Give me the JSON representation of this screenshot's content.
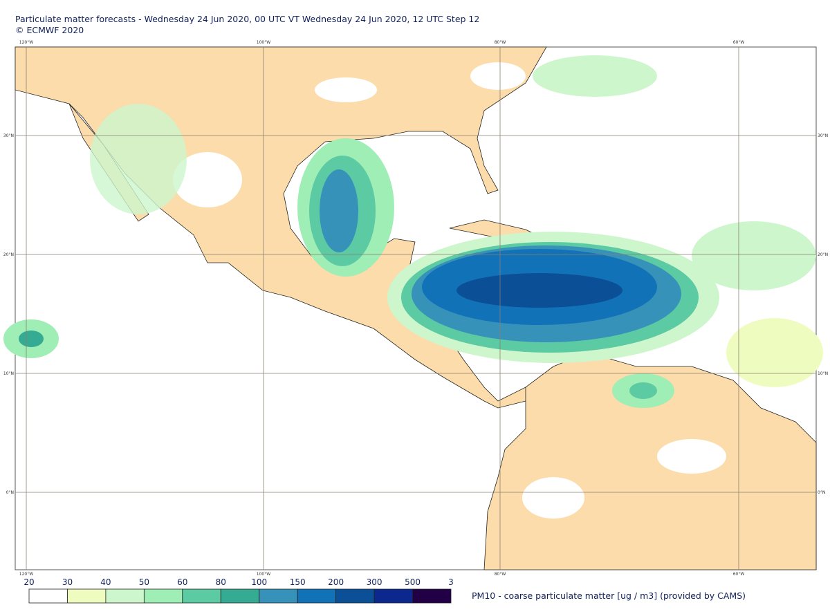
{
  "header": {
    "title": "Particulate matter forecasts - Wednesday 24 Jun 2020, 00 UTC VT Wednesday 24 Jun 2020, 12 UTC Step 12",
    "copyright": "© ECMWF 2020"
  },
  "map": {
    "longitude_labels": [
      "120°W",
      "100°W",
      "80°W",
      "60°W"
    ],
    "latitude_labels": [
      "30°N",
      "20°N",
      "10°N",
      "0°N"
    ]
  },
  "legend": {
    "labels": [
      "20",
      "30",
      "40",
      "50",
      "60",
      "80",
      "100",
      "150",
      "200",
      "300",
      "500",
      "3"
    ],
    "colors": [
      "#ffffff",
      "#eefcc0",
      "#cdf6cc",
      "#9eeeb6",
      "#5ccaa2",
      "#34ab92",
      "#3792ba",
      "#1272b8",
      "#0b5096",
      "#0c288e",
      "#220046"
    ],
    "caption": "PM10 - coarse particulate matter [ug / m3] (provided by CAMS)"
  }
}
